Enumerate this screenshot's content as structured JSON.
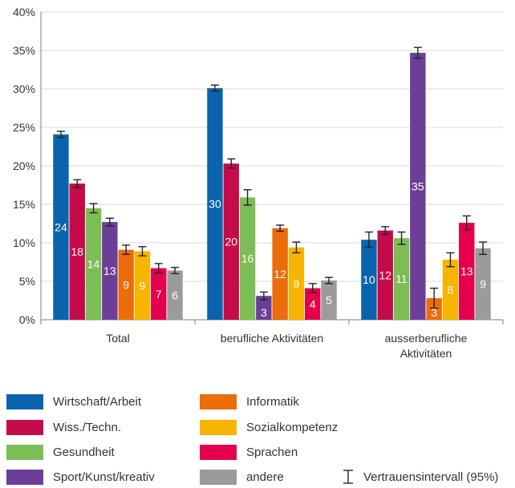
{
  "chart_data": {
    "type": "bar",
    "categories": [
      [
        "Total"
      ],
      [
        "berufliche Aktivitäten"
      ],
      [
        "ausserberufliche",
        "Aktivitäten"
      ]
    ],
    "y_ticks": [
      "0%",
      "5%",
      "10%",
      "15%",
      "20%",
      "25%",
      "30%",
      "35%",
      "40%"
    ],
    "ylim": [
      0,
      40
    ],
    "grid": true,
    "legend_position": "bottom",
    "series": [
      {
        "name": "Wirtschaft/Arbeit",
        "color": "#0a63ad",
        "values": [
          24.1,
          30.1,
          10.4
        ],
        "ci": [
          [
            23.7,
            24.5
          ],
          [
            29.7,
            30.5
          ],
          [
            9.4,
            11.4
          ]
        ],
        "labels": [
          "24",
          "30",
          "10"
        ]
      },
      {
        "name": "Wiss./Techn.",
        "color": "#c50b4a",
        "values": [
          17.7,
          20.3,
          11.6
        ],
        "ci": [
          [
            17.2,
            18.2
          ],
          [
            19.7,
            20.9
          ],
          [
            11.1,
            12.1
          ]
        ],
        "labels": [
          "18",
          "20",
          "12"
        ]
      },
      {
        "name": "Gesundheit",
        "color": "#7dbd56",
        "values": [
          14.5,
          15.9,
          10.6
        ],
        "ci": [
          [
            13.9,
            15.1
          ],
          [
            14.9,
            16.9
          ],
          [
            9.8,
            11.4
          ]
        ],
        "labels": [
          "14",
          "16",
          "11"
        ]
      },
      {
        "name": "Sport/Kunst/kreativ",
        "color": "#6c3e97",
        "values": [
          12.7,
          3.1,
          34.7
        ],
        "ci": [
          [
            12.2,
            13.2
          ],
          [
            2.6,
            3.6
          ],
          [
            34.0,
            35.4
          ]
        ],
        "labels": [
          "13",
          "3",
          "35"
        ]
      },
      {
        "name": "Informatik",
        "color": "#ec6d0b",
        "values": [
          9.1,
          11.9,
          2.8
        ],
        "ci": [
          [
            8.5,
            9.7
          ],
          [
            11.5,
            12.3
          ],
          [
            1.5,
            4.1
          ]
        ],
        "labels": [
          "9",
          "12",
          "3"
        ]
      },
      {
        "name": "Sozialkompetenz",
        "color": "#f7b400",
        "values": [
          8.9,
          9.4,
          7.8
        ],
        "ci": [
          [
            8.3,
            9.5
          ],
          [
            8.7,
            10.1
          ],
          [
            6.9,
            8.7
          ]
        ],
        "labels": [
          "9",
          "9",
          "8"
        ]
      },
      {
        "name": "Sprachen",
        "color": "#e4004e",
        "values": [
          6.7,
          4.1,
          12.6
        ],
        "ci": [
          [
            6.1,
            7.3
          ],
          [
            3.5,
            4.7
          ],
          [
            11.7,
            13.5
          ]
        ],
        "labels": [
          "7",
          "4",
          "13"
        ]
      },
      {
        "name": "andere",
        "color": "#9b9b9b",
        "values": [
          6.4,
          5.1,
          9.3
        ],
        "ci": [
          [
            6.0,
            6.8
          ],
          [
            4.7,
            5.5
          ],
          [
            8.5,
            10.1
          ]
        ],
        "labels": [
          "6",
          "5",
          "9"
        ]
      }
    ],
    "ci_legend_label": "Vertrauensintervall (95%)"
  }
}
